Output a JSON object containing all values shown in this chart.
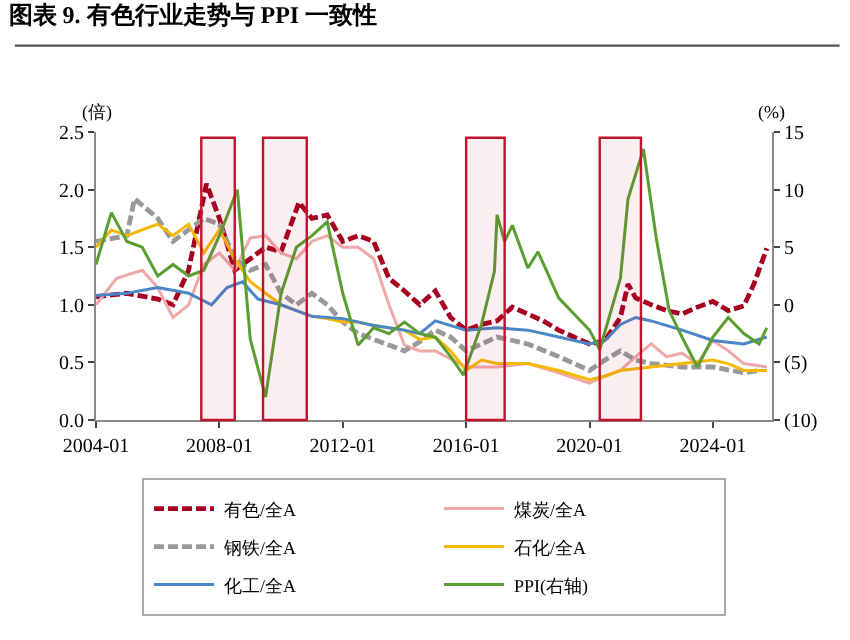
{
  "chart_data": {
    "type": "line",
    "title": "图表 9. 有色行业走势与 PPI 一致性",
    "ylabel": "(倍)",
    "y2label": "(%)",
    "xlim": [
      "2004-01",
      "2025-12"
    ],
    "xticks": [
      "2004-01",
      "2008-01",
      "2012-01",
      "2016-01",
      "2020-01",
      "2024-01"
    ],
    "ylim": [
      0,
      2.5
    ],
    "yticks": [
      {
        "value": 0,
        "label": "0.0"
      },
      0.5,
      {
        "value": 1,
        "label": "1.0"
      },
      1.5,
      {
        "value": 2,
        "label": "2.0"
      },
      2.5
    ],
    "y2lim": [
      -10,
      15
    ],
    "y2ticks": [
      {
        "value": -10,
        "label": "(10)"
      },
      {
        "value": -5,
        "label": "(5)"
      },
      0,
      5,
      10,
      15
    ],
    "legend": "bottom",
    "marker": "none",
    "bands": [
      {
        "axis": "x",
        "from": "2007-06",
        "to": "2008-07",
        "color": "#c0142c"
      },
      {
        "axis": "x",
        "from": "2009-06",
        "to": "2010-11",
        "color": "#c0142c"
      },
      {
        "axis": "x",
        "from": "2016-01",
        "to": "2017-04",
        "color": "#c0142c"
      },
      {
        "axis": "x",
        "from": "2020-05",
        "to": "2021-09",
        "color": "#c0142c"
      }
    ],
    "series": [
      {
        "name": "有色/全A",
        "color": "#a50021",
        "line_style": "dashed",
        "x": [
          "2004-01",
          "2005-01",
          "2006-01",
          "2006-07",
          "2007-01",
          "2007-08",
          "2008-01",
          "2008-07",
          "2009-01",
          "2009-07",
          "2010-01",
          "2010-08",
          "2011-01",
          "2011-07",
          "2012-01",
          "2012-07",
          "2013-01",
          "2013-07",
          "2014-01",
          "2014-07",
          "2015-01",
          "2015-07",
          "2016-01",
          "2016-07",
          "2017-01",
          "2017-07",
          "2018-01",
          "2018-07",
          "2019-01",
          "2019-07",
          "2020-01",
          "2020-07",
          "2021-01",
          "2021-04",
          "2021-07",
          "2022-01",
          "2022-07",
          "2023-01",
          "2023-07",
          "2024-01",
          "2024-07",
          "2025-01",
          "2025-05",
          "2025-10"
        ],
        "values": [
          1.07,
          1.1,
          1.05,
          1.0,
          1.3,
          2.05,
          1.75,
          1.3,
          1.4,
          1.5,
          1.46,
          1.89,
          1.75,
          1.78,
          1.55,
          1.6,
          1.55,
          1.23,
          1.12,
          1.0,
          1.12,
          0.89,
          0.78,
          0.83,
          0.86,
          0.98,
          0.92,
          0.86,
          0.78,
          0.72,
          0.66,
          0.69,
          0.89,
          1.18,
          1.06,
          1.0,
          0.95,
          0.92,
          0.98,
          1.03,
          0.95,
          0.99,
          1.18,
          1.49
        ]
      },
      {
        "name": "煤炭/全A",
        "color": "#f0a8a8",
        "line_style": "solid",
        "x": [
          "2004-01",
          "2004-09",
          "2005-07",
          "2006-01",
          "2006-07",
          "2007-01",
          "2007-07",
          "2008-01",
          "2008-07",
          "2009-01",
          "2009-07",
          "2010-01",
          "2010-07",
          "2011-01",
          "2011-07",
          "2012-01",
          "2012-07",
          "2013-01",
          "2013-07",
          "2014-01",
          "2014-07",
          "2015-01",
          "2016-01",
          "2017-01",
          "2018-01",
          "2019-01",
          "2020-01",
          "2020-07",
          "2021-01",
          "2021-07",
          "2022-01",
          "2022-07",
          "2023-01",
          "2023-07",
          "2024-01",
          "2024-07",
          "2025-01",
          "2025-10"
        ],
        "values": [
          1.0,
          1.23,
          1.3,
          1.15,
          0.89,
          1.0,
          1.35,
          1.45,
          1.3,
          1.58,
          1.6,
          1.45,
          1.4,
          1.55,
          1.6,
          1.5,
          1.5,
          1.4,
          1.0,
          0.65,
          0.6,
          0.6,
          0.46,
          0.46,
          0.49,
          0.41,
          0.32,
          0.38,
          0.43,
          0.55,
          0.66,
          0.55,
          0.58,
          0.49,
          0.69,
          0.6,
          0.49,
          0.46
        ]
      },
      {
        "name": "钢铁/全A",
        "color": "#999999",
        "line_style": "dashed",
        "x": [
          "2004-01",
          "2005-01",
          "2005-04",
          "2006-01",
          "2006-07",
          "2007-01",
          "2007-07",
          "2008-01",
          "2008-07",
          "2009-01",
          "2009-07",
          "2010-01",
          "2010-07",
          "2011-01",
          "2011-07",
          "2012-01",
          "2012-07",
          "2013-01",
          "2013-07",
          "2014-01",
          "2014-07",
          "2015-01",
          "2015-07",
          "2016-01",
          "2016-07",
          "2017-01",
          "2018-01",
          "2019-01",
          "2020-01",
          "2020-07",
          "2021-01",
          "2021-07",
          "2022-01",
          "2023-01",
          "2024-01",
          "2025-01",
          "2025-07"
        ],
        "values": [
          1.55,
          1.6,
          1.92,
          1.75,
          1.55,
          1.65,
          1.75,
          1.7,
          1.4,
          1.3,
          1.35,
          1.1,
          1.0,
          1.1,
          1.0,
          0.85,
          0.75,
          0.7,
          0.65,
          0.6,
          0.68,
          0.78,
          0.72,
          0.6,
          0.66,
          0.72,
          0.66,
          0.55,
          0.43,
          0.52,
          0.6,
          0.52,
          0.49,
          0.46,
          0.46,
          0.41,
          0.43
        ]
      },
      {
        "name": "石化/全A",
        "color": "#f5b800",
        "line_style": "solid",
        "x": [
          "2004-01",
          "2004-07",
          "2005-01",
          "2005-07",
          "2006-01",
          "2006-07",
          "2007-01",
          "2007-07",
          "2008-01",
          "2008-07",
          "2009-01",
          "2009-07",
          "2010-01",
          "2010-07",
          "2011-01",
          "2011-07",
          "2012-01",
          "2012-07",
          "2013-01",
          "2013-07",
          "2014-01",
          "2014-07",
          "2015-01",
          "2015-07",
          "2016-01",
          "2016-07",
          "2017-01",
          "2018-01",
          "2019-01",
          "2020-01",
          "2020-07",
          "2021-01",
          "2022-01",
          "2023-01",
          "2024-01",
          "2024-07",
          "2025-01",
          "2025-10"
        ],
        "values": [
          1.5,
          1.65,
          1.6,
          1.65,
          1.7,
          1.6,
          1.7,
          1.45,
          1.65,
          1.4,
          1.2,
          1.1,
          1.0,
          0.95,
          0.9,
          0.88,
          0.85,
          0.85,
          0.82,
          0.8,
          0.78,
          0.7,
          0.72,
          0.6,
          0.43,
          0.52,
          0.49,
          0.49,
          0.43,
          0.35,
          0.38,
          0.43,
          0.46,
          0.49,
          0.52,
          0.49,
          0.43,
          0.43
        ]
      },
      {
        "name": "化工/全A",
        "color": "#4a86c8",
        "line_style": "solid",
        "x": [
          "2004-01",
          "2005-01",
          "2006-01",
          "2007-01",
          "2007-10",
          "2008-04",
          "2008-10",
          "2009-04",
          "2010-01",
          "2010-07",
          "2011-01",
          "2012-01",
          "2013-01",
          "2014-01",
          "2014-07",
          "2015-01",
          "2016-01",
          "2017-01",
          "2018-01",
          "2019-01",
          "2020-01",
          "2020-07",
          "2021-01",
          "2021-07",
          "2022-01",
          "2023-01",
          "2024-01",
          "2025-01",
          "2025-10"
        ],
        "values": [
          1.08,
          1.1,
          1.15,
          1.1,
          1.0,
          1.15,
          1.2,
          1.05,
          1.0,
          0.95,
          0.9,
          0.88,
          0.82,
          0.78,
          0.75,
          0.86,
          0.78,
          0.8,
          0.78,
          0.72,
          0.66,
          0.69,
          0.83,
          0.89,
          0.86,
          0.78,
          0.69,
          0.66,
          0.72
        ]
      },
      {
        "name": "PPI(右轴)",
        "color": "#5a9e32",
        "line_style": "solid",
        "axis": "y2",
        "x": [
          "2004-01",
          "2004-07",
          "2005-01",
          "2005-07",
          "2006-01",
          "2006-07",
          "2007-01",
          "2007-07",
          "2008-01",
          "2008-08",
          "2009-01",
          "2009-07",
          "2010-01",
          "2010-07",
          "2011-01",
          "2011-07",
          "2012-01",
          "2012-07",
          "2013-01",
          "2013-07",
          "2014-01",
          "2014-07",
          "2015-01",
          "2015-07",
          "2015-12",
          "2016-07",
          "2016-12",
          "2017-01",
          "2017-04",
          "2017-07",
          "2018-01",
          "2018-05",
          "2019-01",
          "2019-07",
          "2020-01",
          "2020-05",
          "2021-01",
          "2021-04",
          "2021-10",
          "2022-03",
          "2022-08",
          "2023-01",
          "2023-07",
          "2024-01",
          "2024-07",
          "2025-01",
          "2025-07",
          "2025-10"
        ],
        "values": [
          3.5,
          8,
          5.5,
          5,
          2.5,
          3.5,
          2.5,
          3,
          6,
          10,
          -3,
          -8,
          1,
          5,
          6,
          7.2,
          1,
          -3.5,
          -2,
          -2.5,
          -1.5,
          -2.5,
          -2.8,
          -4.5,
          -6.1,
          -1.7,
          2.9,
          7.8,
          5.5,
          6.9,
          3.2,
          4.6,
          0.6,
          -0.8,
          -2.2,
          -3.9,
          2.3,
          9.2,
          13.5,
          5.8,
          -0.5,
          -2.8,
          -5.4,
          -2.8,
          -1.1,
          -2.5,
          -3.4,
          -2.0
        ]
      }
    ]
  }
}
